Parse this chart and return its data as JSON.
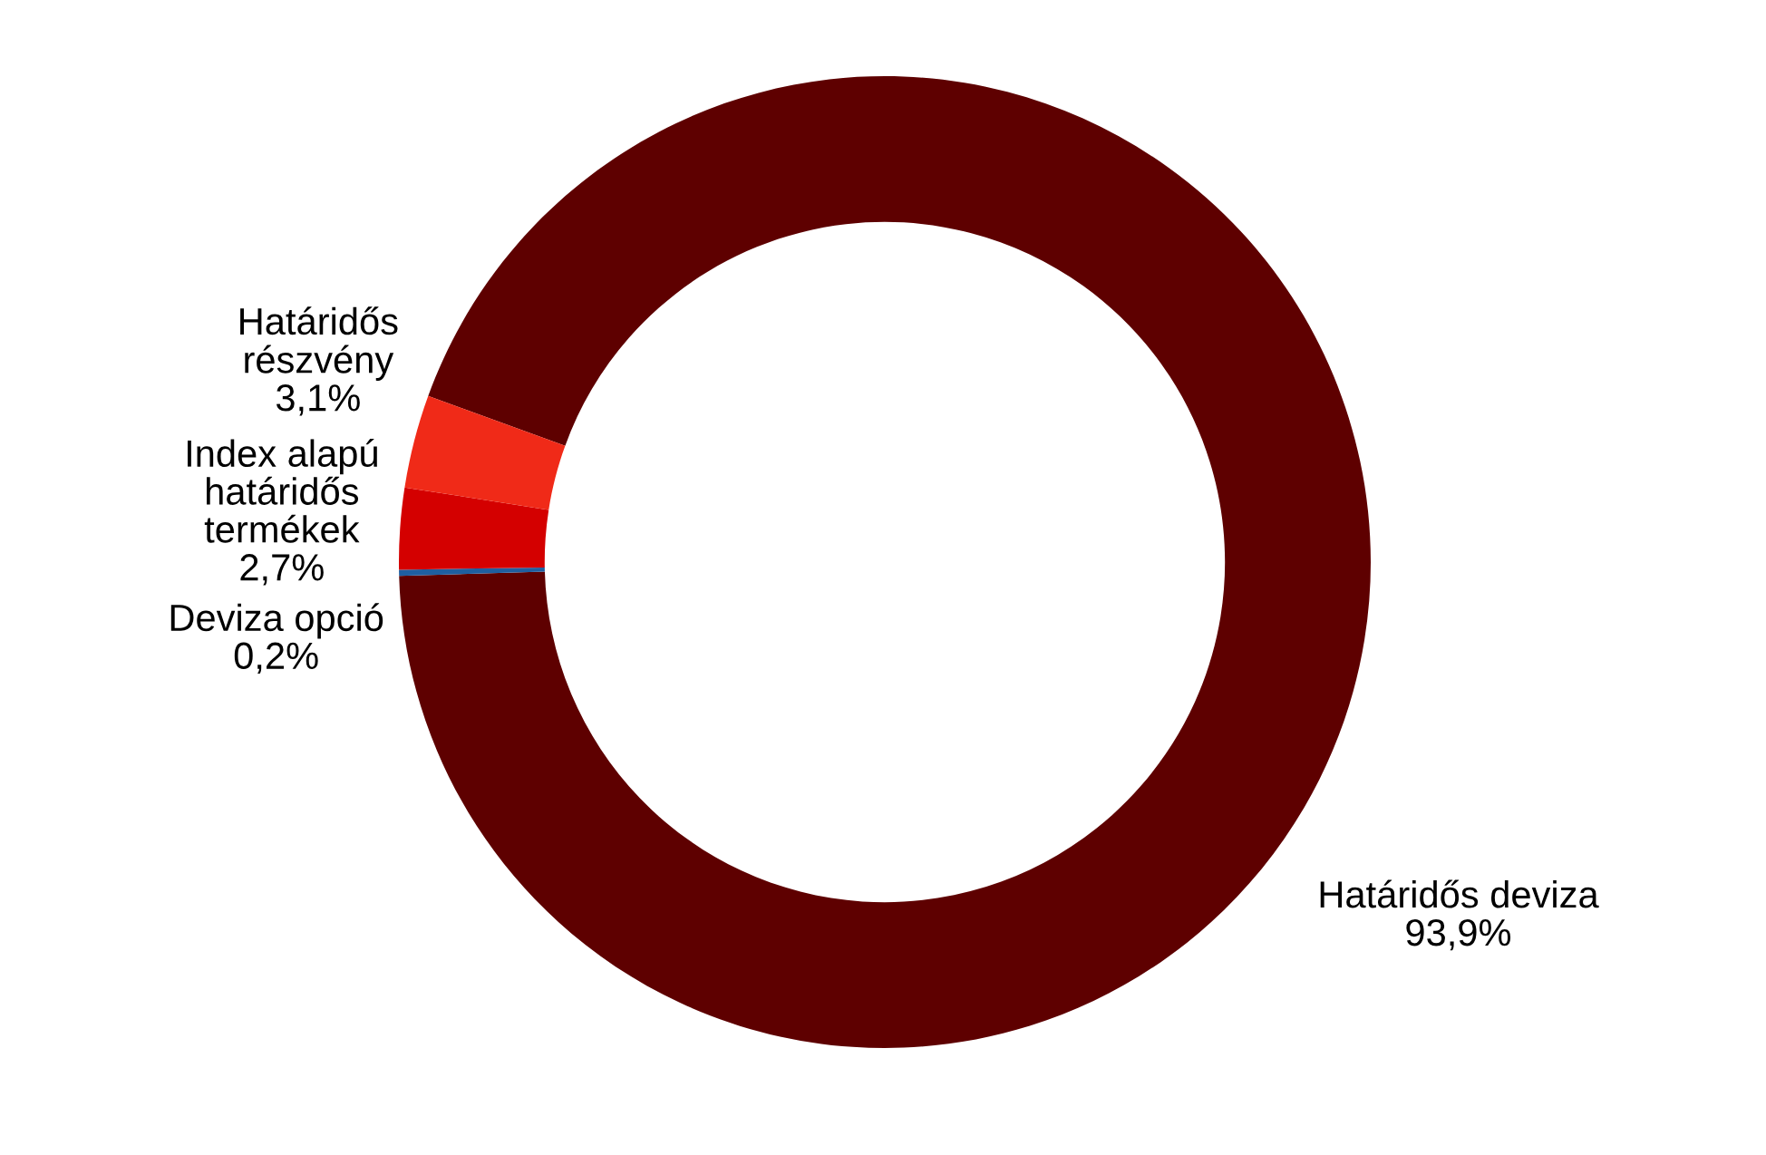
{
  "chart_data": {
    "type": "donut",
    "categories": [
      "Határidős deviza",
      "Deviza opció",
      "Index alapú\nhatáridős\ntermékek",
      "Határidős\nrészvény"
    ],
    "values": [
      93.9,
      0.2,
      2.7,
      3.1
    ],
    "value_labels": [
      "93,9%",
      "0,2%",
      "2,7%",
      "3,1%"
    ],
    "colors": [
      "#5e0000",
      "#1f5fa0",
      "#d40000",
      "#f02a18"
    ],
    "legend": false
  }
}
